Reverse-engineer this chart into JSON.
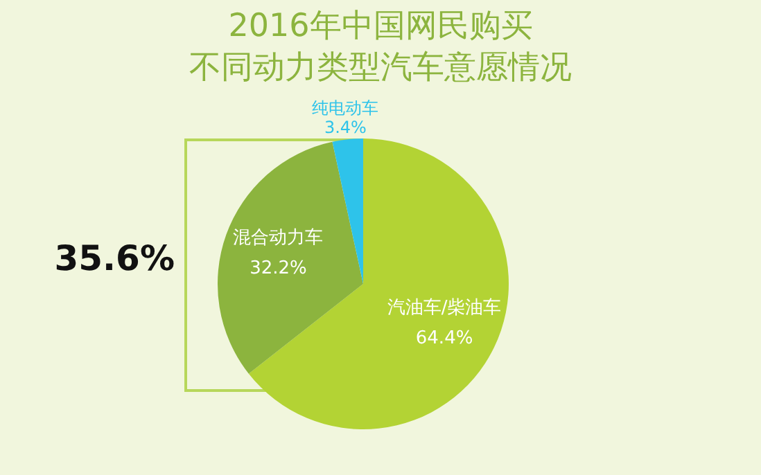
{
  "chart_data": {
    "type": "pie",
    "title": "2016年中国网民购买",
    "subtitle": "不同动力类型汽车意愿情况",
    "categories": [
      "汽油车/柴油车",
      "混合动力车",
      "纯电动车"
    ],
    "values": [
      64.4,
      32.2,
      3.4
    ],
    "value_labels": [
      "64.4%",
      "32.2%",
      "3.4%"
    ],
    "colors": [
      "#b3d334",
      "#8cb43e",
      "#2ec3ea"
    ],
    "annotations": [
      "35.6%"
    ],
    "legend": false
  }
}
